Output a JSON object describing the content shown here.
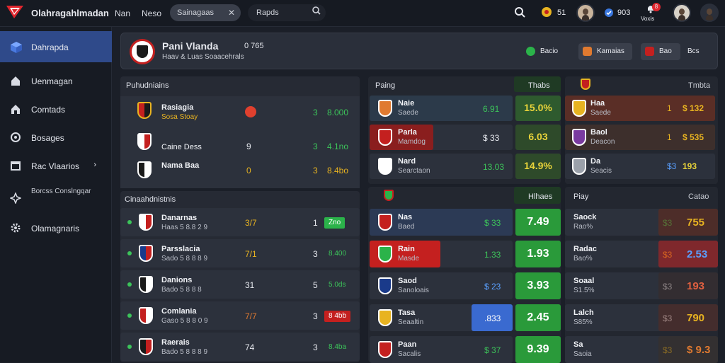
{
  "topbar": {
    "brand": "Olahragahlmadan",
    "nav1": "Nan",
    "nav2": "Neso",
    "pill": "Sainagaas",
    "search": "Rapds",
    "coins": "51",
    "points": "903",
    "notif": "Voxis",
    "badge": "8"
  },
  "sidebar": [
    {
      "label": "Dahrapda"
    },
    {
      "label": "Uenmagan"
    },
    {
      "label": "Comtads"
    },
    {
      "label": "Bosages"
    },
    {
      "label": "Rac Vlaarios"
    },
    {
      "label": "Borcss Conslngqar"
    },
    {
      "label": "Olamagnaris"
    }
  ],
  "header": {
    "title": "Pani Vlanda",
    "sub": "Haav & Luas Soaacehrals",
    "score": "0 765",
    "btn1": "Bacio",
    "btn2": "Kamaias",
    "btn3": "Bao",
    "btn4": "Bcs"
  },
  "left_top": {
    "title": "Puhudniains",
    "rows": [
      {
        "name": "Rasiagia",
        "sub": "Sosa Stoay",
        "a": "",
        "b": "3",
        "c": "8.000"
      },
      {
        "name": "Caine Dess",
        "sub": "",
        "a": "9",
        "b": "3",
        "c": "4.1no"
      },
      {
        "name": "Nama Baa",
        "sub": "",
        "a": "0",
        "b": "3",
        "c": "8.4bo"
      }
    ]
  },
  "left_bottom": {
    "title": "Cinaahdnistnis",
    "rows": [
      {
        "name": "Danarnas",
        "sub": "Haas 5 8.8 2 9",
        "a": "3/7",
        "b": "1",
        "c": "Zno"
      },
      {
        "name": "Parsslacia",
        "sub": "Sado 5 8 8 8 9",
        "a": "7/1",
        "b": "3",
        "c": "8.400"
      },
      {
        "name": "Danions",
        "sub": "Bado 5 8 8 8",
        "a": "31",
        "b": "5",
        "c": "5.0ds"
      },
      {
        "name": "Comlania",
        "sub": "Gaso 5 8 8 0 9",
        "a": "7/7",
        "b": "3",
        "c": "8 4bb"
      },
      {
        "name": "Raerais",
        "sub": "Bado 5 8 8 8 9",
        "a": "74",
        "b": "3",
        "c": "8.4ba"
      }
    ]
  },
  "mid_top": {
    "title": "Paing",
    "col": "Thabs",
    "rows": [
      {
        "name": "Naie",
        "sub": "Saede",
        "a": "6.91",
        "b": "15.0%"
      },
      {
        "name": "Parla",
        "sub": "Mamdog",
        "a": "$ 33",
        "b": "6.03"
      },
      {
        "name": "Nard",
        "sub": "Searctaon",
        "a": "13.03",
        "b": "14.9%"
      }
    ]
  },
  "right_top": {
    "title": "Tmbta",
    "rows": [
      {
        "name": "Haa",
        "sub": "Saede",
        "a": "1",
        "b": "$ 132"
      },
      {
        "name": "Baol",
        "sub": "Deacon",
        "a": "1",
        "b": "$ 535"
      },
      {
        "name": "Da",
        "sub": "Seacis",
        "a": "$3",
        "b": "193"
      }
    ]
  },
  "mid_bottom": {
    "col": "Hlhaes",
    "rows": [
      {
        "name": "Nas",
        "sub": "Baed",
        "a": "$ 33",
        "b": "7.49"
      },
      {
        "name": "Rain",
        "sub": "Masde",
        "a": "1.33",
        "b": "1.93"
      },
      {
        "name": "Saod",
        "sub": "Sanoloais",
        "a": "$ 23",
        "b": "3.93"
      },
      {
        "name": "Tasa",
        "sub": "Seaaltin",
        "a": ".833",
        "b": "2.45"
      },
      {
        "name": "Paan",
        "sub": "Sacalis",
        "a": "$ 37",
        "b": "9.39"
      }
    ]
  },
  "right_bottom": {
    "title": "Piay",
    "col": "Catao",
    "rows": [
      {
        "name": "Saock",
        "sub": "Rao%",
        "a": "$3",
        "b": "755"
      },
      {
        "name": "Radac",
        "sub": "Bao%",
        "a": "$3",
        "b": "2.53"
      },
      {
        "name": "Soaal",
        "sub": "S1.5%",
        "a": "$3",
        "b": "193"
      },
      {
        "name": "Lalch",
        "sub": "S85%",
        "a": "$3",
        "b": "790"
      },
      {
        "name": "Sa",
        "sub": "Saoia",
        "a": "$3",
        "b": "$ 9.3"
      }
    ]
  }
}
